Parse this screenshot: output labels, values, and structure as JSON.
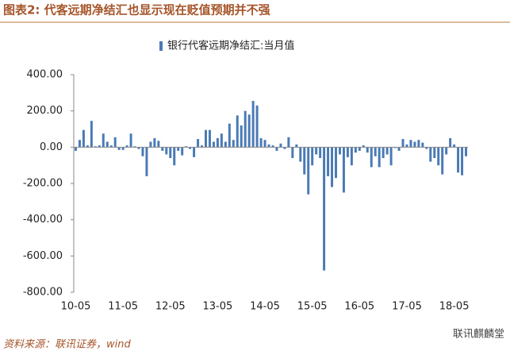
{
  "chart_data": {
    "type": "bar",
    "title": "图表2:   代客远期净结汇也显示现在贬值预期并不强",
    "source": "资料来源：联讯证券，wind",
    "watermark": "联讯麒麟堂",
    "categories": [
      "10-05",
      null,
      null,
      null,
      null,
      null,
      null,
      null,
      null,
      null,
      null,
      null,
      "11-05",
      null,
      null,
      null,
      null,
      null,
      null,
      null,
      null,
      null,
      null,
      null,
      "12-05",
      null,
      null,
      null,
      null,
      null,
      null,
      null,
      null,
      null,
      null,
      null,
      "13-05",
      null,
      null,
      null,
      null,
      null,
      null,
      null,
      null,
      null,
      null,
      null,
      "14-05",
      null,
      null,
      null,
      null,
      null,
      null,
      null,
      null,
      null,
      null,
      null,
      "15-05",
      null,
      null,
      null,
      null,
      null,
      null,
      null,
      null,
      null,
      null,
      null,
      "16-05",
      null,
      null,
      null,
      null,
      null,
      null,
      null,
      null,
      null,
      null,
      null,
      "17-05",
      null,
      null,
      null,
      null,
      null,
      null,
      null,
      null,
      null,
      null,
      null,
      "18-05",
      null,
      null,
      null
    ],
    "series": [
      {
        "name": "银行代客远期净结汇:当月值",
        "color": "#4a7ab5",
        "values": [
          -20,
          40,
          95,
          10,
          145,
          5,
          10,
          75,
          30,
          10,
          55,
          -15,
          -15,
          10,
          75,
          5,
          -10,
          -50,
          -160,
          30,
          50,
          35,
          -20,
          -40,
          -60,
          -100,
          -20,
          -45,
          5,
          -10,
          -55,
          45,
          10,
          95,
          95,
          30,
          50,
          75,
          30,
          130,
          40,
          175,
          120,
          200,
          180,
          255,
          230,
          50,
          40,
          15,
          10,
          -20,
          20,
          -10,
          55,
          -60,
          15,
          -80,
          -150,
          -260,
          -100,
          -40,
          -60,
          -680,
          -160,
          -220,
          -170,
          -40,
          -250,
          -55,
          -100,
          -30,
          -20,
          10,
          -30,
          -110,
          -50,
          -110,
          -60,
          -40,
          -100,
          -5,
          -20,
          45,
          15,
          40,
          30,
          40,
          25,
          -10,
          -80,
          -60,
          -100,
          -150,
          -40,
          50,
          15,
          -140,
          -155,
          -50
        ]
      }
    ],
    "ylim": [
      -800,
      400
    ],
    "yticks": [
      {
        "value": -800,
        "label": "-800.00"
      },
      {
        "value": -600,
        "label": "-600.00"
      },
      {
        "value": -400,
        "label": "-400.00"
      },
      {
        "value": -200,
        "label": "-200.00"
      },
      {
        "value": 0,
        "label": "0.00"
      },
      {
        "value": 200,
        "label": "200.00"
      },
      {
        "value": 400,
        "label": "400.00"
      }
    ],
    "legend": "top"
  }
}
